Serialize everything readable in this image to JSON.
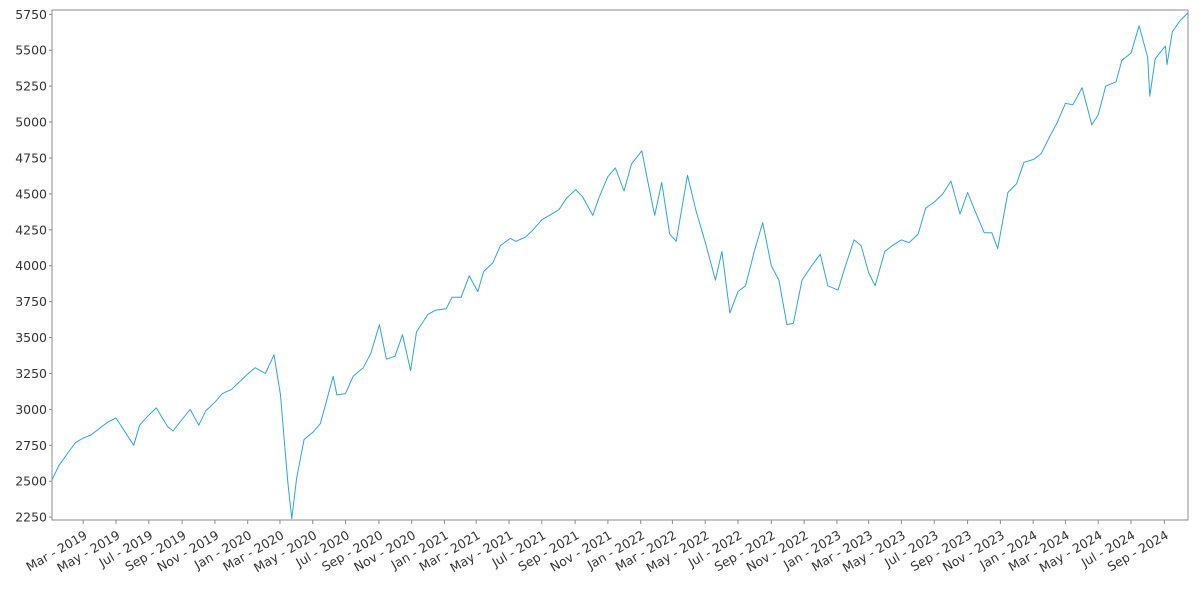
{
  "chart_data": {
    "type": "line",
    "title": "",
    "xlabel": "",
    "ylabel": "",
    "grid": false,
    "legend": "none",
    "line_color": "#29a8d8",
    "xlim": [
      "2019-01-02",
      "2024-10-15"
    ],
    "ylim": [
      2230,
      5780
    ],
    "y_ticks": [
      2250,
      2500,
      2750,
      3000,
      3250,
      3500,
      3750,
      4000,
      4250,
      4500,
      4750,
      5000,
      5250,
      5500,
      5750
    ],
    "x_ticks": [
      {
        "date": "2019-03-01",
        "label": "Mar - 2019"
      },
      {
        "date": "2019-05-01",
        "label": "May - 2019"
      },
      {
        "date": "2019-07-01",
        "label": "Jul - 2019"
      },
      {
        "date": "2019-09-01",
        "label": "Sep - 2019"
      },
      {
        "date": "2019-11-01",
        "label": "Nov - 2019"
      },
      {
        "date": "2020-01-01",
        "label": "Jan - 2020"
      },
      {
        "date": "2020-03-01",
        "label": "Mar - 2020"
      },
      {
        "date": "2020-05-01",
        "label": "May - 2020"
      },
      {
        "date": "2020-07-01",
        "label": "Jul - 2020"
      },
      {
        "date": "2020-09-01",
        "label": "Sep - 2020"
      },
      {
        "date": "2020-11-01",
        "label": "Nov - 2020"
      },
      {
        "date": "2021-01-01",
        "label": "Jan - 2021"
      },
      {
        "date": "2021-03-01",
        "label": "Mar - 2021"
      },
      {
        "date": "2021-05-01",
        "label": "May - 2021"
      },
      {
        "date": "2021-07-01",
        "label": "Jul - 2021"
      },
      {
        "date": "2021-09-01",
        "label": "Sep - 2021"
      },
      {
        "date": "2021-11-01",
        "label": "Nov - 2021"
      },
      {
        "date": "2022-01-01",
        "label": "Jan - 2022"
      },
      {
        "date": "2022-03-01",
        "label": "Mar - 2022"
      },
      {
        "date": "2022-05-01",
        "label": "May - 2022"
      },
      {
        "date": "2022-07-01",
        "label": "Jul - 2022"
      },
      {
        "date": "2022-09-01",
        "label": "Sep - 2022"
      },
      {
        "date": "2022-11-01",
        "label": "Nov - 2022"
      },
      {
        "date": "2023-01-01",
        "label": "Jan - 2023"
      },
      {
        "date": "2023-03-01",
        "label": "Mar - 2023"
      },
      {
        "date": "2023-05-01",
        "label": "May - 2023"
      },
      {
        "date": "2023-07-01",
        "label": "Jul - 2023"
      },
      {
        "date": "2023-09-01",
        "label": "Sep - 2023"
      },
      {
        "date": "2023-11-01",
        "label": "Nov - 2023"
      },
      {
        "date": "2024-01-01",
        "label": "Jan - 2024"
      },
      {
        "date": "2024-03-01",
        "label": "Mar - 2024"
      },
      {
        "date": "2024-05-01",
        "label": "May - 2024"
      },
      {
        "date": "2024-07-01",
        "label": "Jul - 2024"
      },
      {
        "date": "2024-09-01",
        "label": "Sep - 2024"
      }
    ],
    "series": [
      {
        "x": [
          "2019-01-02",
          "2019-01-15",
          "2019-02-01",
          "2019-02-15",
          "2019-03-01",
          "2019-03-15",
          "2019-04-01",
          "2019-04-15",
          "2019-05-01",
          "2019-05-15",
          "2019-06-03",
          "2019-06-14",
          "2019-07-01",
          "2019-07-15",
          "2019-08-05",
          "2019-08-15",
          "2019-09-03",
          "2019-09-16",
          "2019-10-02",
          "2019-10-15",
          "2019-11-01",
          "2019-11-15",
          "2019-12-02",
          "2019-12-16",
          "2020-01-02",
          "2020-01-15",
          "2020-02-03",
          "2020-02-19",
          "2020-03-02",
          "2020-03-09",
          "2020-03-16",
          "2020-03-23",
          "2020-04-01",
          "2020-04-15",
          "2020-05-01",
          "2020-05-15",
          "2020-06-08",
          "2020-06-15",
          "2020-07-01",
          "2020-07-15",
          "2020-08-03",
          "2020-08-17",
          "2020-09-02",
          "2020-09-15",
          "2020-10-01",
          "2020-10-15",
          "2020-10-30",
          "2020-11-10",
          "2020-12-01",
          "2020-12-15",
          "2021-01-04",
          "2021-01-15",
          "2021-02-01",
          "2021-02-16",
          "2021-03-04",
          "2021-03-15",
          "2021-04-01",
          "2021-04-15",
          "2021-05-03",
          "2021-05-14",
          "2021-06-01",
          "2021-06-15",
          "2021-07-01",
          "2021-07-15",
          "2021-08-02",
          "2021-08-16",
          "2021-09-02",
          "2021-09-15",
          "2021-10-04",
          "2021-10-15",
          "2021-11-01",
          "2021-11-15",
          "2021-12-01",
          "2021-12-15",
          "2022-01-03",
          "2022-01-14",
          "2022-01-27",
          "2022-02-09",
          "2022-02-24",
          "2022-03-08",
          "2022-03-29",
          "2022-04-14",
          "2022-05-02",
          "2022-05-20",
          "2022-06-01",
          "2022-06-16",
          "2022-07-01",
          "2022-07-15",
          "2022-08-01",
          "2022-08-16",
          "2022-09-01",
          "2022-09-15",
          "2022-09-30",
          "2022-10-12",
          "2022-10-28",
          "2022-11-15",
          "2022-12-01",
          "2022-12-15",
          "2023-01-03",
          "2023-01-17",
          "2023-02-02",
          "2023-02-15",
          "2023-03-01",
          "2023-03-13",
          "2023-03-31",
          "2023-04-14",
          "2023-05-01",
          "2023-05-15",
          "2023-06-01",
          "2023-06-15",
          "2023-07-03",
          "2023-07-17",
          "2023-08-01",
          "2023-08-18",
          "2023-09-01",
          "2023-09-15",
          "2023-10-02",
          "2023-10-16",
          "2023-10-27",
          "2023-11-15",
          "2023-12-01",
          "2023-12-15",
          "2024-01-02",
          "2024-01-16",
          "2024-02-01",
          "2024-02-15",
          "2024-03-01",
          "2024-03-15",
          "2024-04-01",
          "2024-04-19",
          "2024-05-01",
          "2024-05-15",
          "2024-06-03",
          "2024-06-14",
          "2024-07-01",
          "2024-07-16",
          "2024-08-01",
          "2024-08-05",
          "2024-08-15",
          "2024-09-03",
          "2024-09-06",
          "2024-09-16",
          "2024-10-01",
          "2024-10-15"
        ],
        "y": [
          2510,
          2610,
          2700,
          2770,
          2800,
          2820,
          2870,
          2910,
          2940,
          2860,
          2750,
          2890,
          2960,
          3010,
          2880,
          2850,
          2940,
          3000,
          2890,
          2990,
          3050,
          3110,
          3140,
          3190,
          3250,
          3290,
          3250,
          3380,
          3100,
          2780,
          2480,
          2240,
          2520,
          2790,
          2840,
          2900,
          3230,
          3100,
          3110,
          3230,
          3290,
          3390,
          3590,
          3350,
          3370,
          3520,
          3270,
          3540,
          3660,
          3690,
          3700,
          3780,
          3780,
          3930,
          3820,
          3960,
          4020,
          4140,
          4190,
          4170,
          4200,
          4250,
          4320,
          4350,
          4390,
          4470,
          4530,
          4480,
          4350,
          4470,
          4620,
          4680,
          4520,
          4710,
          4800,
          4590,
          4350,
          4580,
          4220,
          4170,
          4630,
          4380,
          4150,
          3900,
          4100,
          3670,
          3820,
          3860,
          4110,
          4300,
          4000,
          3900,
          3590,
          3600,
          3900,
          4000,
          4080,
          3860,
          3830,
          4000,
          4180,
          4140,
          3950,
          3860,
          4100,
          4140,
          4180,
          4160,
          4220,
          4400,
          4450,
          4500,
          4590,
          4360,
          4510,
          4380,
          4230,
          4230,
          4120,
          4510,
          4570,
          4720,
          4740,
          4780,
          4900,
          5000,
          5130,
          5120,
          5240,
          4980,
          5050,
          5250,
          5280,
          5430,
          5480,
          5670,
          5450,
          5180,
          5440,
          5530,
          5400,
          5630,
          5710,
          5760
        ]
      }
    ]
  }
}
